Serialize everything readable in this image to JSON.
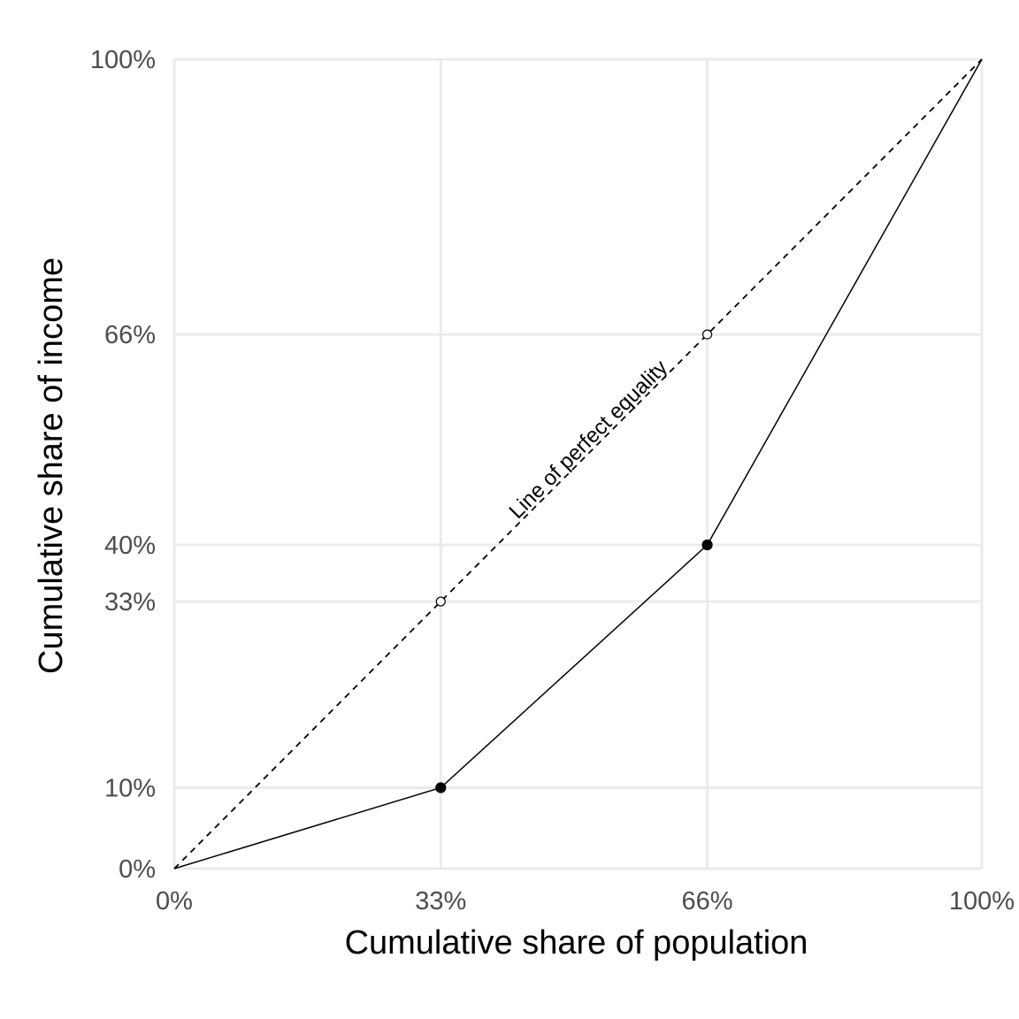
{
  "chart_data": {
    "type": "line",
    "xlabel": "Cumulative share of population",
    "ylabel": "Cumulative share of income",
    "xlim": [
      0,
      100
    ],
    "ylim": [
      0,
      100
    ],
    "x_ticks": [
      {
        "value": 0,
        "label": "0%"
      },
      {
        "value": 33,
        "label": "33%"
      },
      {
        "value": 66,
        "label": "66%"
      },
      {
        "value": 100,
        "label": "100%"
      }
    ],
    "y_ticks": [
      {
        "value": 0,
        "label": "0%"
      },
      {
        "value": 10,
        "label": "10%"
      },
      {
        "value": 33,
        "label": "33%"
      },
      {
        "value": 40,
        "label": "40%"
      },
      {
        "value": 66,
        "label": "66%"
      },
      {
        "value": 100,
        "label": "100%"
      }
    ],
    "grid": true,
    "series": [
      {
        "style": "solid",
        "marker": "filled-circle",
        "color": "#000000",
        "x": [
          0,
          33,
          66,
          100
        ],
        "y": [
          0,
          10,
          40,
          100
        ],
        "marker_points": [
          1,
          2
        ]
      },
      {
        "style": "dashed",
        "marker": "open-circle",
        "color": "#000000",
        "x": [
          0,
          33,
          66,
          100
        ],
        "y": [
          0,
          33,
          66,
          100
        ],
        "marker_points": [
          1,
          2
        ]
      }
    ],
    "annotations": [
      {
        "text": "Line of perfect equality",
        "x": 51,
        "y": 52,
        "angle_along": "equality-line"
      }
    ]
  }
}
